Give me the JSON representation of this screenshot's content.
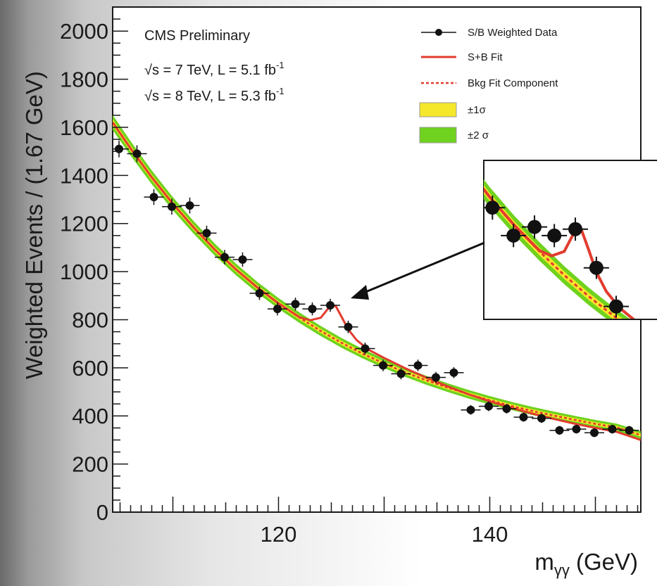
{
  "chart_data": {
    "type": "scatter",
    "title": "",
    "xlabel": "mγγ (GeV)",
    "ylabel": "Weighted Events / (1.67 GeV)",
    "xlim": [
      104.3,
      154.3
    ],
    "ylim": [
      0,
      2100
    ],
    "x_ticks": [
      120,
      140
    ],
    "y_ticks": [
      0,
      200,
      400,
      600,
      800,
      1000,
      1200,
      1400,
      1600,
      1800,
      2000
    ],
    "x_tick_labels": [
      "120",
      "140"
    ],
    "y_tick_labels": [
      "0",
      "200",
      "400",
      "600",
      "800",
      "1000",
      "1200",
      "1400",
      "1600",
      "1800",
      "2000"
    ],
    "xlabel_main": "m",
    "xlabel_sub": "γγ",
    "xlabel_unit": " (GeV)",
    "annotations": [
      "CMS Preliminary",
      "√s = 7 TeV, L = 5.1 fb",
      "√s = 8 TeV, L = 5.3 fb"
    ],
    "annotation_sup": "-1",
    "legend": {
      "placement": "top-right",
      "entries": [
        "S/B Weighted Data",
        "S+B Fit",
        "Bkg Fit Component",
        "±1σ",
        "±2 σ"
      ]
    },
    "colors": {
      "data": "#111111",
      "fit": "#e23b2e",
      "bkg": "#e23b2e",
      "band1": "#f5e72a",
      "band2": "#6fd21e"
    },
    "series": [
      {
        "name": "S/B Weighted Data",
        "x": [
          104.9,
          106.6,
          108.2,
          109.9,
          111.6,
          113.2,
          114.9,
          116.6,
          118.2,
          119.9,
          121.6,
          123.2,
          124.9,
          126.6,
          128.2,
          129.9,
          131.6,
          133.2,
          134.9,
          136.6,
          138.2,
          139.9,
          141.6,
          143.2,
          144.9,
          146.6,
          148.2,
          149.9,
          151.6,
          153.2
        ],
        "y": [
          1510,
          1490,
          1310,
          1270,
          1275,
          1160,
          1060,
          1050,
          910,
          845,
          865,
          845,
          860,
          770,
          680,
          610,
          575,
          610,
          560,
          580,
          425,
          440,
          430,
          395,
          390,
          340,
          345,
          330,
          345,
          340
        ],
        "yerr": [
          35,
          35,
          33,
          33,
          33,
          31,
          30,
          30,
          28,
          27,
          27,
          27,
          27,
          26,
          25,
          24,
          23,
          24,
          23,
          23,
          20,
          20,
          20,
          19,
          19,
          18,
          18,
          18,
          18,
          18
        ]
      },
      {
        "name": "S+B Fit",
        "x": [
          104.3,
          106,
          108,
          110,
          112,
          114,
          116,
          118,
          120,
          122,
          123,
          124,
          124.8,
          125.4,
          126,
          126.6,
          127.4,
          128.5,
          130,
          132,
          134,
          136,
          138,
          140,
          142,
          144,
          146,
          148,
          150,
          152,
          154.3
        ],
        "y": [
          1620,
          1512,
          1392,
          1282,
          1182,
          1090,
          1008,
          934,
          868,
          810,
          798,
          808,
          852,
          858,
          810,
          760,
          715,
          676,
          641,
          598,
          559,
          523,
          490,
          461,
          434,
          410,
          388,
          368,
          350,
          334,
          300
        ]
      },
      {
        "name": "Bkg Fit Component",
        "x": [
          104.3,
          106,
          108,
          110,
          112,
          114,
          116,
          118,
          120,
          122,
          124,
          126,
          128,
          130,
          132,
          134,
          136,
          138,
          140,
          142,
          144,
          146,
          148,
          150,
          152,
          154.3
        ],
        "y": [
          1620,
          1512,
          1392,
          1282,
          1182,
          1090,
          1008,
          934,
          868,
          808,
          753,
          703,
          658,
          618,
          581,
          548,
          518,
          490,
          465,
          442,
          421,
          402,
          384,
          367,
          352,
          320
        ]
      }
    ],
    "inset": {
      "xlim": [
        117.5,
        131.5
      ],
      "ylim": [
        650,
        1020
      ]
    }
  }
}
